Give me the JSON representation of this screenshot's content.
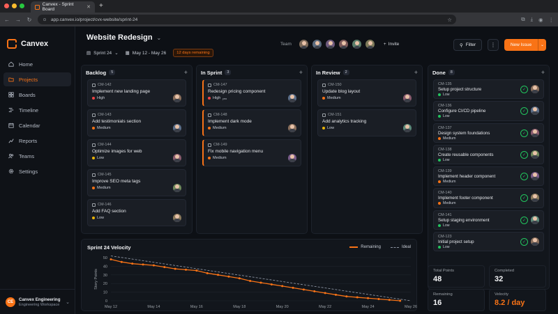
{
  "browser": {
    "tab_title": "Canvex - Sprint Board",
    "url": "app.canvex.io/project/cvx-website/sprint-24",
    "window_colors": [
      "#ff5f57",
      "#febc2e",
      "#28c840"
    ]
  },
  "brand": {
    "name": "Canvex",
    "accent": "#f97316"
  },
  "sidebar": {
    "items": [
      {
        "label": "Home",
        "icon": "home-icon"
      },
      {
        "label": "Projects",
        "icon": "folder-icon",
        "active": true
      },
      {
        "label": "Boards",
        "icon": "grid-icon"
      },
      {
        "label": "Timeline",
        "icon": "timeline-icon"
      },
      {
        "label": "Calendar",
        "icon": "calendar-icon"
      },
      {
        "label": "Reports",
        "icon": "chart-icon"
      },
      {
        "label": "Teams",
        "icon": "users-icon"
      },
      {
        "label": "Settings",
        "icon": "gear-icon"
      }
    ],
    "workspace": {
      "initials": "CE",
      "name": "Canvex Engineering",
      "sub": "Engineering Workspace"
    }
  },
  "header": {
    "title": "Website Redesign",
    "sprint": "Sprint 24",
    "dates": "May 12 - May 26",
    "remaining": "12 days remaining",
    "team_label": "Team",
    "invite": "Invite",
    "filter": "Filter",
    "new_issue": "New Issue"
  },
  "columns": [
    {
      "title": "Backlog",
      "count": "5",
      "cards": [
        {
          "id": "CM-142",
          "title": "Implement new landing page",
          "priority": "High"
        },
        {
          "id": "CM-143",
          "title": "Add testimonials section",
          "priority": "Medium"
        },
        {
          "id": "CM-144",
          "title": "Optimize images for web",
          "priority": "Low"
        },
        {
          "id": "CM-145",
          "title": "Improve SEO meta tags",
          "priority": "Medium"
        },
        {
          "id": "CM-146",
          "title": "Add FAQ section",
          "priority": "Low"
        }
      ]
    },
    {
      "title": "In Sprint",
      "count": "3",
      "cards": [
        {
          "id": "CM-147",
          "title": "Redesign pricing component",
          "priority": "High",
          "priority_suffix": "pro"
        },
        {
          "id": "CM-148",
          "title": "Implement dark mode",
          "priority": "Medium"
        },
        {
          "id": "CM-149",
          "title": "Fix mobile navigation menu",
          "priority": "Medium"
        }
      ]
    },
    {
      "title": "In Review",
      "count": "2",
      "cards": [
        {
          "id": "CM-150",
          "title": "Update blog layout",
          "priority": "Medium"
        },
        {
          "id": "CM-151",
          "title": "Add analytics tracking",
          "priority": "Low"
        }
      ]
    }
  ],
  "done": {
    "title": "Done",
    "count": "8",
    "cards": [
      {
        "id": "CM-135",
        "title": "Setup project structure",
        "priority": "Low"
      },
      {
        "id": "CM-136",
        "title": "Configure CI/CD pipeline",
        "priority": "Low"
      },
      {
        "id": "CM-137",
        "title": "Design system foundations",
        "priority": "Medium"
      },
      {
        "id": "CM-138",
        "title": "Create reusable components",
        "priority": "Low"
      },
      {
        "id": "CM-139",
        "title": "Implement header component",
        "priority": "Medium"
      },
      {
        "id": "CM-140",
        "title": "Implement footer component",
        "priority": "Medium"
      },
      {
        "id": "CM-141",
        "title": "Setup staging environment",
        "priority": "Low"
      },
      {
        "id": "CM-123",
        "title": "Initial project setup",
        "priority": "Low"
      }
    ]
  },
  "priority_colors": {
    "High": "#ef4444",
    "Medium": "#f97316",
    "Low": "#eab308",
    "Done": "#22c55e"
  },
  "chart_data": {
    "type": "line",
    "title": "Sprint 24 Velocity",
    "ylabel": "Story Points",
    "xlabel": "",
    "ylim": [
      0,
      50
    ],
    "yticks": [
      0,
      10,
      20,
      30,
      40,
      50
    ],
    "xticks": [
      "May 12",
      "May 14",
      "May 16",
      "May 18",
      "May 20",
      "May 22",
      "May 24",
      "May 26"
    ],
    "legend_position": "top-right",
    "series": [
      {
        "name": "Remaining",
        "color": "#f97316",
        "x": [
          0,
          1,
          2,
          3,
          4,
          5,
          6,
          7,
          8,
          9,
          10,
          11,
          12,
          13,
          14,
          15,
          16,
          17,
          18,
          19,
          20,
          21,
          22,
          23,
          24,
          25,
          26,
          27
        ],
        "x_start": "May 12",
        "x_step_days": 0.5,
        "values": [
          48,
          45,
          43,
          42,
          41,
          39,
          37,
          36,
          35,
          32,
          30,
          28,
          26,
          23,
          21,
          19,
          17,
          15,
          13,
          11,
          9,
          7,
          5,
          4,
          3,
          2,
          1,
          0
        ]
      },
      {
        "name": "Ideal",
        "color": "#8b93a1",
        "dashed": true,
        "x": [
          0,
          28
        ],
        "values": [
          52,
          0
        ]
      }
    ]
  },
  "stats": {
    "total_points_label": "Total Points",
    "total_points": "48",
    "completed_label": "Completed",
    "completed": "32",
    "remaining_label": "Remaining",
    "remaining": "16",
    "velocity_label": "Velocity",
    "velocity": "8.2 / day"
  }
}
